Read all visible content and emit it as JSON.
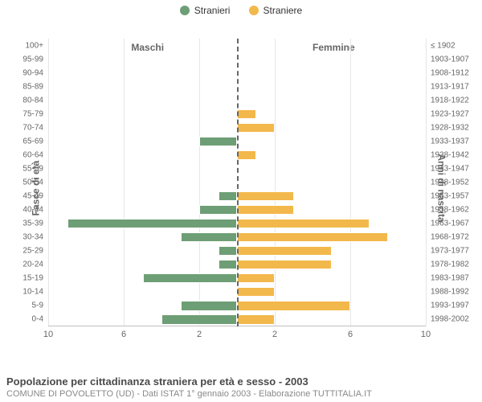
{
  "legend": {
    "male": {
      "label": "Stranieri",
      "color": "#6e9e75"
    },
    "female": {
      "label": "Straniere",
      "color": "#f2b84b"
    }
  },
  "chart": {
    "type": "population-pyramid",
    "title_left": "Maschi",
    "title_right": "Femmine",
    "y_axis_left_title": "Fasce di età",
    "y_axis_right_title": "Anni di nascita",
    "x_max": 10,
    "x_ticks": [
      10,
      6,
      2,
      2,
      6,
      10
    ],
    "background_color": "#ffffff",
    "grid_color": "#e6e6e6",
    "midline_color": "#666666",
    "bar_height_ratio": 0.72,
    "categories": [
      {
        "age": "100+",
        "birth": "≤ 1902",
        "m": 0,
        "f": 0
      },
      {
        "age": "95-99",
        "birth": "1903-1907",
        "m": 0,
        "f": 0
      },
      {
        "age": "90-94",
        "birth": "1908-1912",
        "m": 0,
        "f": 0
      },
      {
        "age": "85-89",
        "birth": "1913-1917",
        "m": 0,
        "f": 0
      },
      {
        "age": "80-84",
        "birth": "1918-1922",
        "m": 0,
        "f": 0
      },
      {
        "age": "75-79",
        "birth": "1923-1927",
        "m": 0,
        "f": 1
      },
      {
        "age": "70-74",
        "birth": "1928-1932",
        "m": 0,
        "f": 2
      },
      {
        "age": "65-69",
        "birth": "1933-1937",
        "m": 2,
        "f": 0
      },
      {
        "age": "60-64",
        "birth": "1938-1942",
        "m": 0,
        "f": 1
      },
      {
        "age": "55-59",
        "birth": "1943-1947",
        "m": 0,
        "f": 0
      },
      {
        "age": "50-54",
        "birth": "1948-1952",
        "m": 0,
        "f": 0
      },
      {
        "age": "45-49",
        "birth": "1953-1957",
        "m": 1,
        "f": 3
      },
      {
        "age": "40-44",
        "birth": "1958-1962",
        "m": 2,
        "f": 3
      },
      {
        "age": "35-39",
        "birth": "1963-1967",
        "m": 9,
        "f": 7
      },
      {
        "age": "30-34",
        "birth": "1968-1972",
        "m": 3,
        "f": 8
      },
      {
        "age": "25-29",
        "birth": "1973-1977",
        "m": 1,
        "f": 5
      },
      {
        "age": "20-24",
        "birth": "1978-1982",
        "m": 1,
        "f": 5
      },
      {
        "age": "15-19",
        "birth": "1983-1987",
        "m": 5,
        "f": 2
      },
      {
        "age": "10-14",
        "birth": "1988-1992",
        "m": 0,
        "f": 2
      },
      {
        "age": "5-9",
        "birth": "1993-1997",
        "m": 3,
        "f": 6
      },
      {
        "age": "0-4",
        "birth": "1998-2002",
        "m": 4,
        "f": 2
      }
    ]
  },
  "caption": {
    "title": "Popolazione per cittadinanza straniera per età e sesso - 2003",
    "subtitle": "COMUNE DI POVOLETTO (UD) - Dati ISTAT 1° gennaio 2003 - Elaborazione TUTTITALIA.IT"
  }
}
